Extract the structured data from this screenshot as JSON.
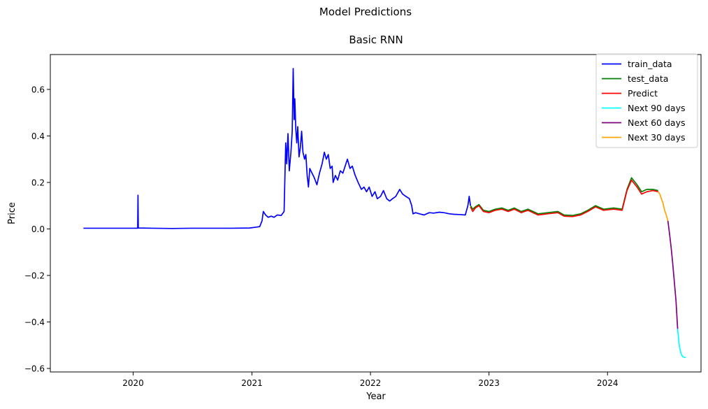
{
  "figure": {
    "suptitle": "Model Predictions"
  },
  "chart_data": {
    "type": "line",
    "title": "Basic RNN",
    "xlabel": "Year",
    "ylabel": "Price",
    "xlim": [
      "2019-04-21",
      "2024-10-15"
    ],
    "ylim": [
      -0.615,
      0.75
    ],
    "x_ticks": [
      "2020-01-01",
      "2021-01-01",
      "2022-01-01",
      "2023-01-01",
      "2024-01-01"
    ],
    "x_tick_labels": [
      "2020",
      "2021",
      "2022",
      "2023",
      "2024"
    ],
    "y_ticks": [
      -0.6,
      -0.4,
      -0.2,
      0.0,
      0.2,
      0.4,
      0.6
    ],
    "y_tick_labels": [
      "−0.6",
      "−0.4",
      "−0.2",
      "0.0",
      "0.2",
      "0.4",
      "0.6"
    ],
    "grid": false,
    "legend_position": "top-right",
    "series": [
      {
        "name": "train_data",
        "color": "#0000ff",
        "points": [
          [
            "2019-08-01",
            0.003
          ],
          [
            "2019-10-01",
            0.003
          ],
          [
            "2019-12-01",
            0.003
          ],
          [
            "2020-01-15",
            0.003
          ],
          [
            "2020-01-16",
            0.145
          ],
          [
            "2020-01-17",
            0.004
          ],
          [
            "2020-03-01",
            0.003
          ],
          [
            "2020-05-01",
            0.002
          ],
          [
            "2020-07-01",
            0.003
          ],
          [
            "2020-09-01",
            0.003
          ],
          [
            "2020-11-01",
            0.003
          ],
          [
            "2020-12-25",
            0.004
          ],
          [
            "2021-01-15",
            0.008
          ],
          [
            "2021-01-25",
            0.01
          ],
          [
            "2021-02-01",
            0.035
          ],
          [
            "2021-02-05",
            0.075
          ],
          [
            "2021-02-12",
            0.06
          ],
          [
            "2021-02-20",
            0.05
          ],
          [
            "2021-03-01",
            0.055
          ],
          [
            "2021-03-10",
            0.05
          ],
          [
            "2021-03-20",
            0.06
          ],
          [
            "2021-04-01",
            0.058
          ],
          [
            "2021-04-10",
            0.075
          ],
          [
            "2021-04-15",
            0.37
          ],
          [
            "2021-04-18",
            0.28
          ],
          [
            "2021-04-22",
            0.41
          ],
          [
            "2021-04-26",
            0.25
          ],
          [
            "2021-05-01",
            0.33
          ],
          [
            "2021-05-05",
            0.42
          ],
          [
            "2021-05-08",
            0.69
          ],
          [
            "2021-05-11",
            0.47
          ],
          [
            "2021-05-13",
            0.56
          ],
          [
            "2021-05-16",
            0.43
          ],
          [
            "2021-05-19",
            0.37
          ],
          [
            "2021-05-22",
            0.44
          ],
          [
            "2021-05-26",
            0.31
          ],
          [
            "2021-05-30",
            0.35
          ],
          [
            "2021-06-03",
            0.42
          ],
          [
            "2021-06-07",
            0.33
          ],
          [
            "2021-06-12",
            0.3
          ],
          [
            "2021-06-16",
            0.32
          ],
          [
            "2021-06-20",
            0.23
          ],
          [
            "2021-06-24",
            0.18
          ],
          [
            "2021-06-28",
            0.26
          ],
          [
            "2021-07-05",
            0.24
          ],
          [
            "2021-07-12",
            0.22
          ],
          [
            "2021-07-20",
            0.19
          ],
          [
            "2021-07-28",
            0.24
          ],
          [
            "2021-08-05",
            0.28
          ],
          [
            "2021-08-12",
            0.33
          ],
          [
            "2021-08-18",
            0.3
          ],
          [
            "2021-08-24",
            0.32
          ],
          [
            "2021-08-30",
            0.26
          ],
          [
            "2021-09-05",
            0.27
          ],
          [
            "2021-09-08",
            0.2
          ],
          [
            "2021-09-15",
            0.23
          ],
          [
            "2021-09-22",
            0.21
          ],
          [
            "2021-09-30",
            0.25
          ],
          [
            "2021-10-08",
            0.24
          ],
          [
            "2021-10-15",
            0.27
          ],
          [
            "2021-10-22",
            0.3
          ],
          [
            "2021-10-30",
            0.26
          ],
          [
            "2021-11-06",
            0.27
          ],
          [
            "2021-11-15",
            0.23
          ],
          [
            "2021-11-24",
            0.2
          ],
          [
            "2021-12-04",
            0.17
          ],
          [
            "2021-12-12",
            0.18
          ],
          [
            "2021-12-20",
            0.16
          ],
          [
            "2021-12-28",
            0.18
          ],
          [
            "2022-01-06",
            0.14
          ],
          [
            "2022-01-15",
            0.16
          ],
          [
            "2022-01-22",
            0.13
          ],
          [
            "2022-02-01",
            0.14
          ],
          [
            "2022-02-10",
            0.165
          ],
          [
            "2022-02-20",
            0.13
          ],
          [
            "2022-03-01",
            0.12
          ],
          [
            "2022-03-10",
            0.13
          ],
          [
            "2022-03-20",
            0.14
          ],
          [
            "2022-04-01",
            0.17
          ],
          [
            "2022-04-10",
            0.15
          ],
          [
            "2022-04-20",
            0.14
          ],
          [
            "2022-05-01",
            0.13
          ],
          [
            "2022-05-08",
            0.1
          ],
          [
            "2022-05-12",
            0.065
          ],
          [
            "2022-05-20",
            0.07
          ],
          [
            "2022-06-01",
            0.065
          ],
          [
            "2022-06-15",
            0.06
          ],
          [
            "2022-07-01",
            0.07
          ],
          [
            "2022-07-15",
            0.068
          ],
          [
            "2022-08-01",
            0.072
          ],
          [
            "2022-08-15",
            0.07
          ],
          [
            "2022-09-01",
            0.065
          ],
          [
            "2022-09-15",
            0.063
          ],
          [
            "2022-10-01",
            0.062
          ],
          [
            "2022-10-20",
            0.06
          ],
          [
            "2022-10-28",
            0.1
          ],
          [
            "2022-11-01",
            0.14
          ],
          [
            "2022-11-05",
            0.1
          ]
        ]
      },
      {
        "name": "test_data",
        "color": "#008000",
        "points": [
          [
            "2022-11-05",
            0.1
          ],
          [
            "2022-11-12",
            0.085
          ],
          [
            "2022-11-20",
            0.095
          ],
          [
            "2022-12-01",
            0.105
          ],
          [
            "2022-12-15",
            0.08
          ],
          [
            "2023-01-01",
            0.075
          ],
          [
            "2023-01-20",
            0.085
          ],
          [
            "2023-02-10",
            0.09
          ],
          [
            "2023-03-01",
            0.08
          ],
          [
            "2023-03-20",
            0.09
          ],
          [
            "2023-04-10",
            0.075
          ],
          [
            "2023-05-01",
            0.085
          ],
          [
            "2023-06-01",
            0.065
          ],
          [
            "2023-07-01",
            0.07
          ],
          [
            "2023-08-01",
            0.075
          ],
          [
            "2023-08-20",
            0.06
          ],
          [
            "2023-09-15",
            0.058
          ],
          [
            "2023-10-10",
            0.065
          ],
          [
            "2023-11-01",
            0.08
          ],
          [
            "2023-11-25",
            0.1
          ],
          [
            "2023-12-20",
            0.085
          ],
          [
            "2024-01-20",
            0.09
          ],
          [
            "2024-02-15",
            0.085
          ],
          [
            "2024-03-01",
            0.17
          ],
          [
            "2024-03-15",
            0.22
          ],
          [
            "2024-04-01",
            0.19
          ],
          [
            "2024-04-15",
            0.16
          ],
          [
            "2024-05-01",
            0.17
          ],
          [
            "2024-05-20",
            0.17
          ],
          [
            "2024-06-05",
            0.165
          ]
        ]
      },
      {
        "name": "Predict",
        "color": "#ff0000",
        "points": [
          [
            "2022-11-05",
            0.095
          ],
          [
            "2022-11-12",
            0.075
          ],
          [
            "2022-11-20",
            0.09
          ],
          [
            "2022-12-01",
            0.1
          ],
          [
            "2022-12-15",
            0.075
          ],
          [
            "2023-01-01",
            0.07
          ],
          [
            "2023-01-20",
            0.08
          ],
          [
            "2023-02-10",
            0.085
          ],
          [
            "2023-03-01",
            0.075
          ],
          [
            "2023-03-20",
            0.085
          ],
          [
            "2023-04-10",
            0.07
          ],
          [
            "2023-05-01",
            0.08
          ],
          [
            "2023-06-01",
            0.06
          ],
          [
            "2023-07-01",
            0.065
          ],
          [
            "2023-08-01",
            0.07
          ],
          [
            "2023-08-20",
            0.055
          ],
          [
            "2023-09-15",
            0.053
          ],
          [
            "2023-10-10",
            0.06
          ],
          [
            "2023-11-01",
            0.075
          ],
          [
            "2023-11-25",
            0.095
          ],
          [
            "2023-12-20",
            0.08
          ],
          [
            "2024-01-20",
            0.085
          ],
          [
            "2024-02-15",
            0.08
          ],
          [
            "2024-03-01",
            0.165
          ],
          [
            "2024-03-15",
            0.21
          ],
          [
            "2024-04-01",
            0.18
          ],
          [
            "2024-04-15",
            0.15
          ],
          [
            "2024-05-01",
            0.16
          ],
          [
            "2024-05-20",
            0.165
          ],
          [
            "2024-06-05",
            0.16
          ]
        ]
      },
      {
        "name": "Next 30 days",
        "color": "#ffa500",
        "points": [
          [
            "2024-06-05",
            0.16
          ],
          [
            "2024-06-10",
            0.15
          ],
          [
            "2024-06-15",
            0.13
          ],
          [
            "2024-06-20",
            0.11
          ],
          [
            "2024-06-25",
            0.08
          ],
          [
            "2024-06-30",
            0.06
          ],
          [
            "2024-07-05",
            0.035
          ]
        ]
      },
      {
        "name": "Next 60 days",
        "color": "#800080",
        "points": [
          [
            "2024-07-05",
            0.035
          ],
          [
            "2024-07-10",
            -0.02
          ],
          [
            "2024-07-15",
            -0.08
          ],
          [
            "2024-07-20",
            -0.15
          ],
          [
            "2024-07-25",
            -0.23
          ],
          [
            "2024-07-30",
            -0.31
          ],
          [
            "2024-08-04",
            -0.43
          ]
        ]
      },
      {
        "name": "Next 90 days",
        "color": "#00ffff",
        "points": [
          [
            "2024-08-04",
            -0.43
          ],
          [
            "2024-08-09",
            -0.5
          ],
          [
            "2024-08-14",
            -0.535
          ],
          [
            "2024-08-19",
            -0.548
          ],
          [
            "2024-08-24",
            -0.552
          ],
          [
            "2024-08-29",
            -0.553
          ]
        ]
      }
    ],
    "legend_order": [
      "train_data",
      "test_data",
      "Predict",
      "Next 90 days",
      "Next 60 days",
      "Next 30 days"
    ]
  }
}
